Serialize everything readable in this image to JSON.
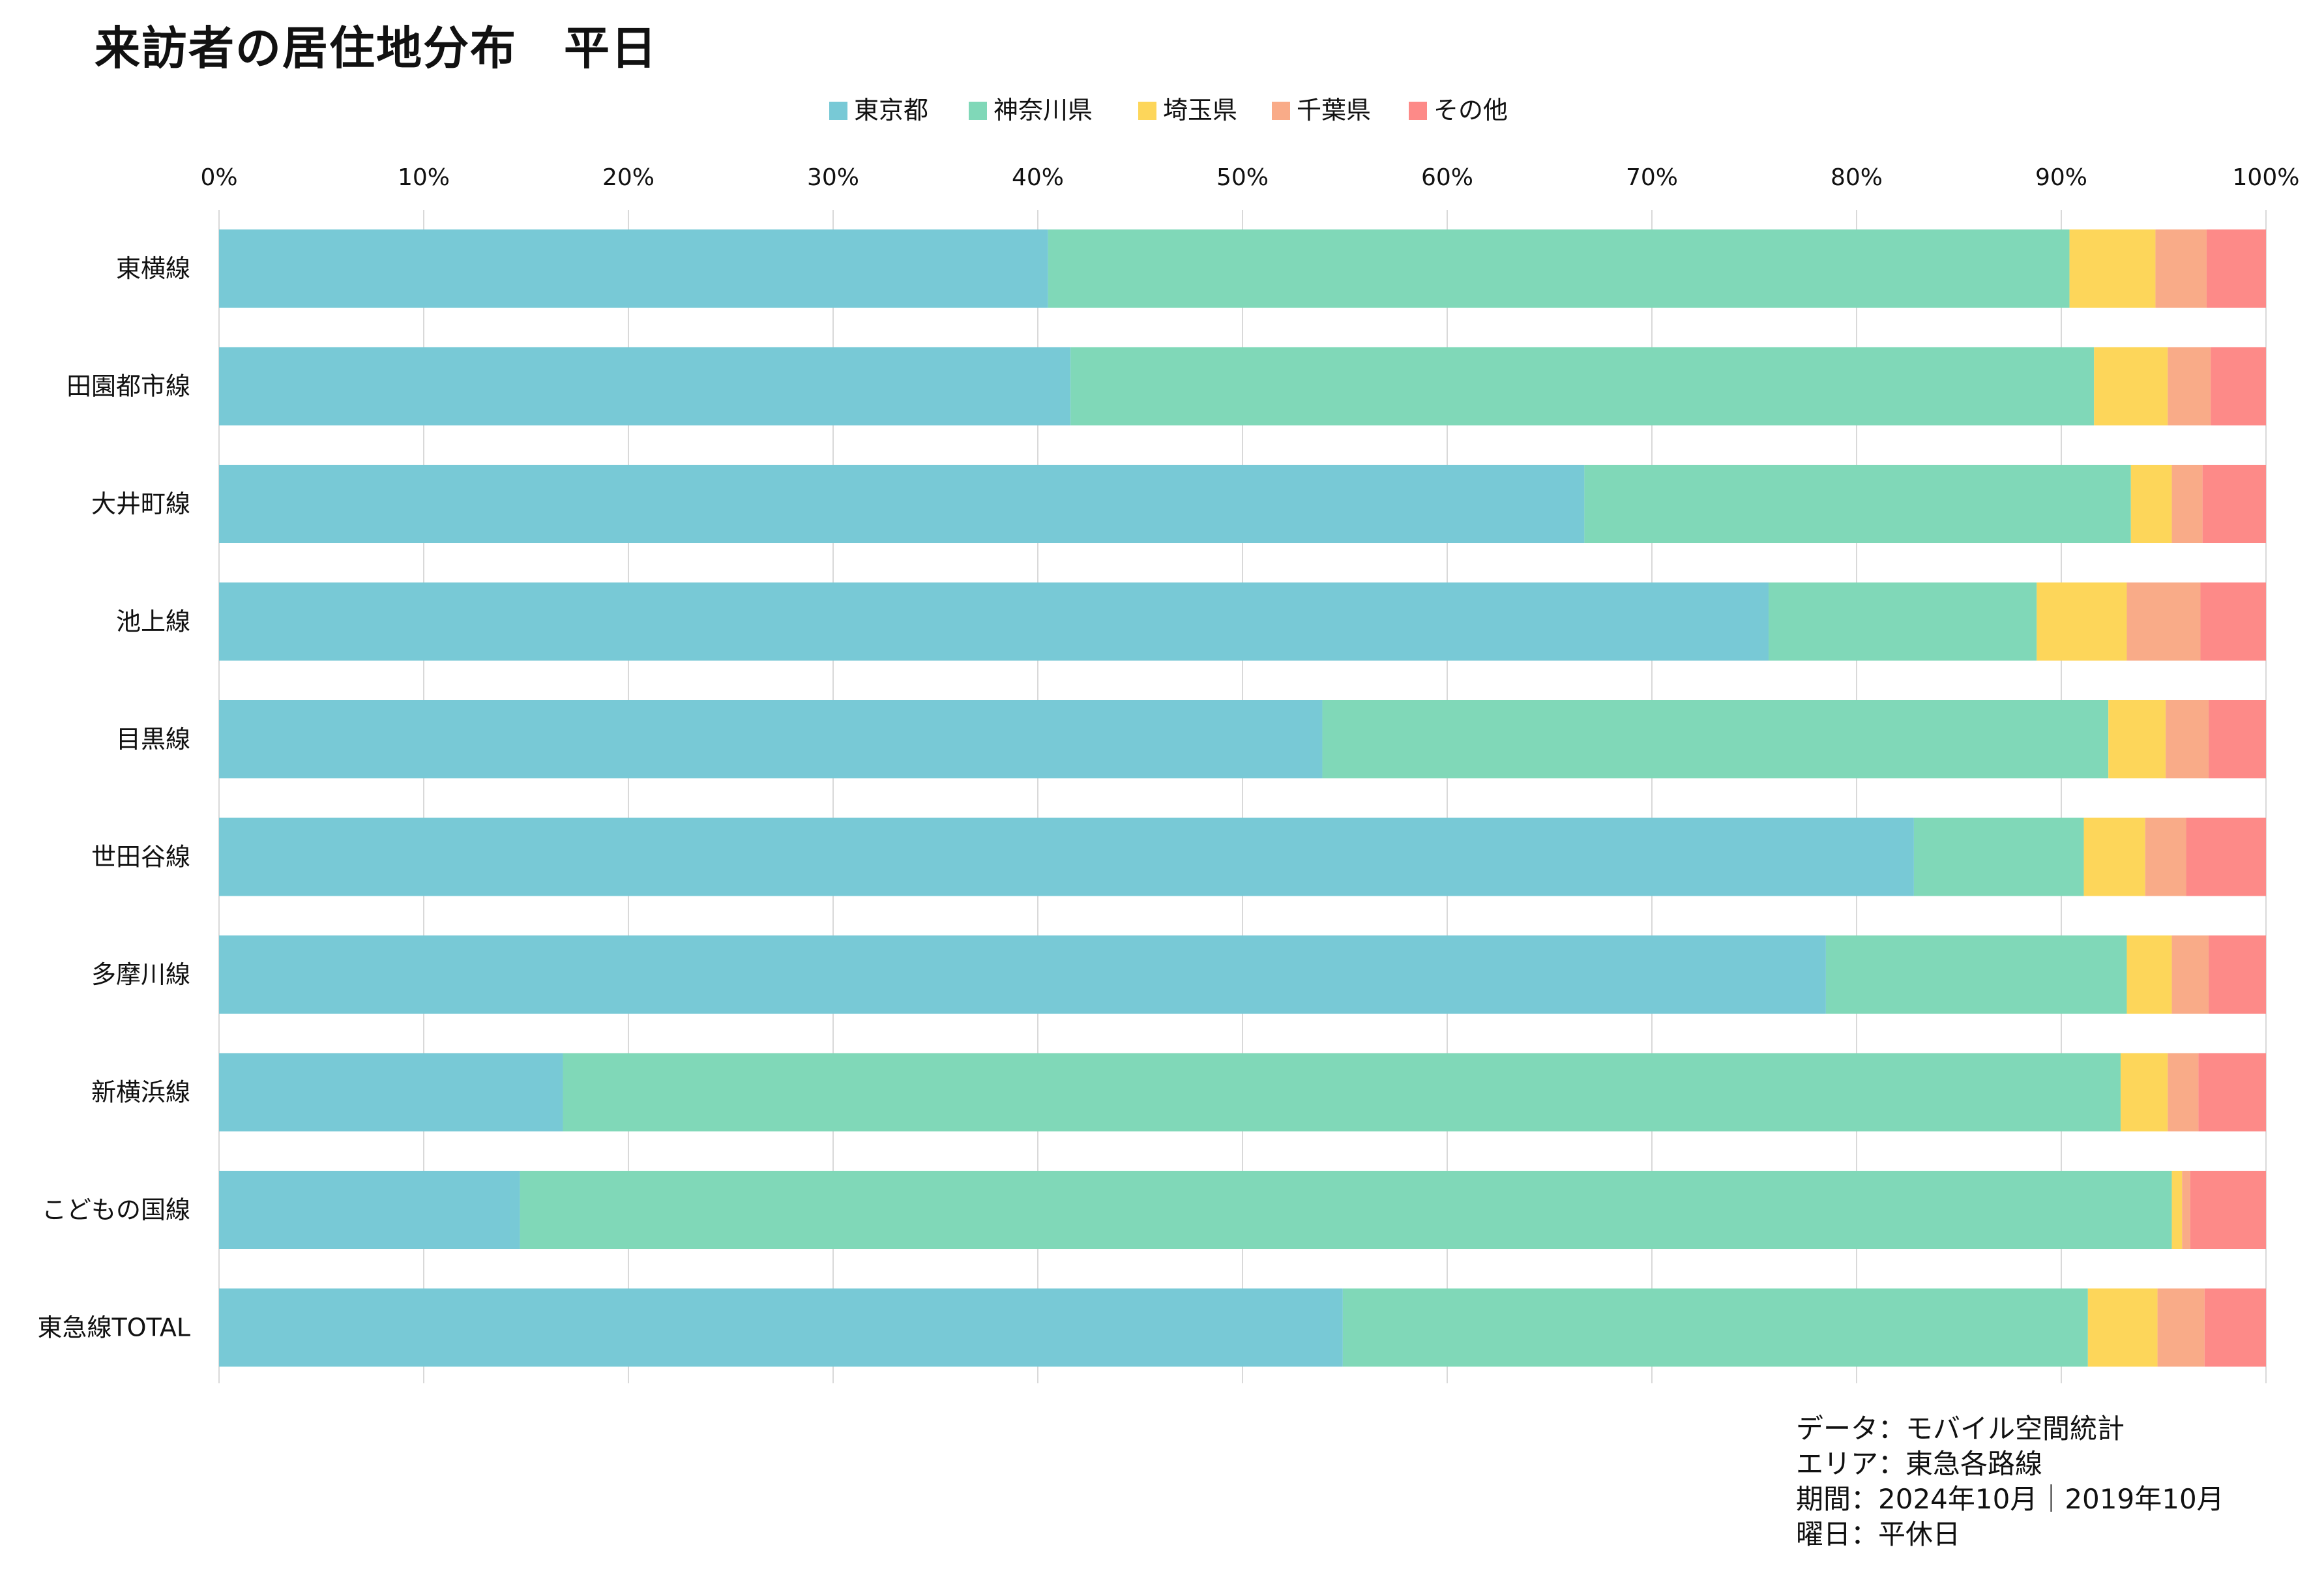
{
  "title": "来訪者の居住地分布　平日",
  "chart_data": {
    "type": "bar",
    "orientation": "horizontal",
    "stacked": "100%",
    "x_ticks": [
      "0%",
      "10%",
      "20%",
      "30%",
      "40%",
      "50%",
      "60%",
      "70%",
      "80%",
      "90%",
      "100%"
    ],
    "xlim": [
      0,
      100
    ],
    "grid": true,
    "legend_position": "top-center",
    "categories": [
      "東横線",
      "田園都市線",
      "大井町線",
      "池上線",
      "目黒線",
      "世田谷線",
      "多摩川線",
      "新横浜線",
      "こどもの国線",
      "東急線TOTAL"
    ],
    "series": [
      {
        "name": "東京都",
        "color": "#78c9d6",
        "values": [
          40.5,
          41.6,
          66.7,
          75.7,
          53.9,
          82.8,
          78.5,
          16.8,
          14.7,
          54.9
        ]
      },
      {
        "name": "神奈川県",
        "color": "#80d8b8",
        "values": [
          49.9,
          50.0,
          26.7,
          13.1,
          38.4,
          8.3,
          14.7,
          76.1,
          80.7,
          36.4
        ]
      },
      {
        "name": "埼玉県",
        "color": "#fdd65a",
        "values": [
          4.2,
          3.6,
          2.0,
          4.4,
          2.8,
          3.0,
          2.2,
          2.3,
          0.5,
          3.4
        ]
      },
      {
        "name": "千葉県",
        "color": "#f9ab88",
        "values": [
          2.5,
          2.1,
          1.5,
          3.6,
          2.1,
          2.0,
          1.8,
          1.5,
          0.4,
          2.3
        ]
      },
      {
        "name": "その他",
        "color": "#fd8a88",
        "values": [
          2.9,
          2.7,
          3.1,
          3.2,
          2.8,
          3.9,
          2.8,
          3.3,
          3.7,
          3.0
        ]
      }
    ]
  },
  "notes": [
    "データ：モバイル空間統計",
    "エリア：東急各路線",
    "期間：2024年10月｜2019年10月",
    "曜日：平休日"
  ]
}
